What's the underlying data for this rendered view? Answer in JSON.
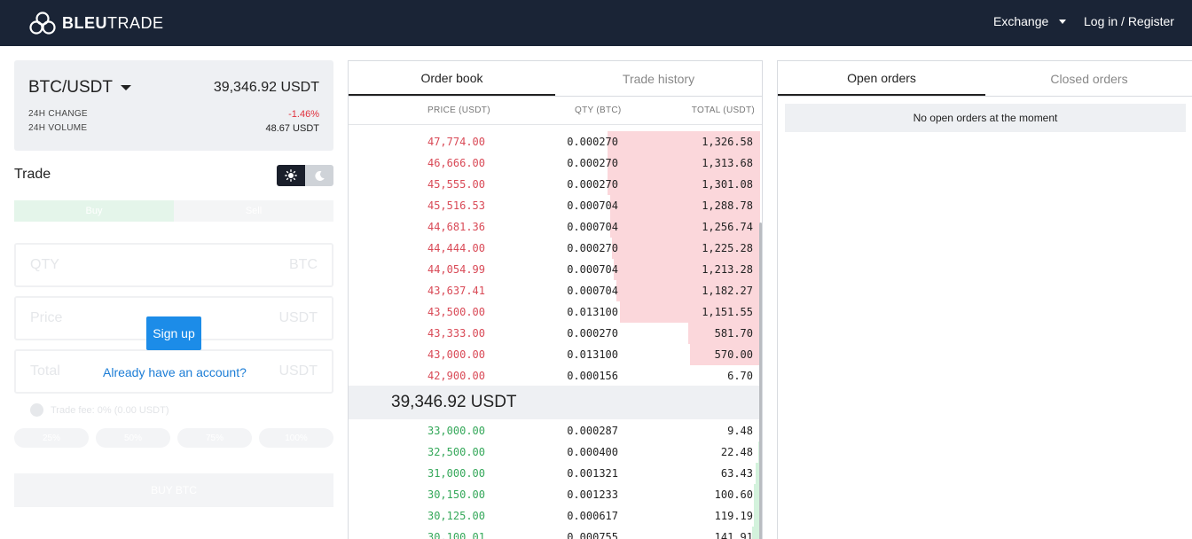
{
  "brand": {
    "logo_bold": "BLEU",
    "logo_light": "TRADE"
  },
  "nav": {
    "exchange": "Exchange",
    "login": "Log in / Register"
  },
  "pair": {
    "name": "BTC/USDT",
    "price": "39,346.92 USDT",
    "change_label": "24H CHANGE",
    "change_value": "-1.46%",
    "volume_label": "24H VOLUME",
    "volume_value": "48.67 USDT"
  },
  "trade": {
    "title": "Trade",
    "buy_tab": "Buy",
    "sell_tab": "Sell",
    "qty_placeholder": "QTY",
    "qty_unit": "BTC",
    "price_placeholder": "Price",
    "price_unit": "USDT",
    "total_placeholder": "Total",
    "total_unit": "USDT",
    "fee": "Trade fee: 0% (0.00 USDT)",
    "pcts": [
      "25%",
      "50%",
      "75%",
      "100%"
    ],
    "buy_button": "BUY BTC",
    "signup": "Sign up",
    "account_link": "Already have an account?"
  },
  "orderbook": {
    "tabs": [
      "Order book",
      "Trade history"
    ],
    "headers": {
      "price": "PRICE (USDT)",
      "qty": "QTY (BTC)",
      "total": "TOTAL (USDT)"
    },
    "asks": [
      {
        "price": "47,774.00",
        "qty": "0.000270",
        "total": "1,326.58",
        "depth": 0.74
      },
      {
        "price": "46,666.00",
        "qty": "0.000270",
        "total": "1,313.68",
        "depth": 0.74
      },
      {
        "price": "45,555.00",
        "qty": "0.000270",
        "total": "1,301.08",
        "depth": 0.74
      },
      {
        "price": "45,516.53",
        "qty": "0.000704",
        "total": "1,288.78",
        "depth": 0.73
      },
      {
        "price": "44,681.36",
        "qty": "0.000704",
        "total": "1,256.74",
        "depth": 0.73
      },
      {
        "price": "44,444.00",
        "qty": "0.000270",
        "total": "1,225.28",
        "depth": 0.72
      },
      {
        "price": "44,054.99",
        "qty": "0.000704",
        "total": "1,213.28",
        "depth": 0.71
      },
      {
        "price": "43,637.41",
        "qty": "0.000704",
        "total": "1,182.27",
        "depth": 0.7
      },
      {
        "price": "43,500.00",
        "qty": "0.013100",
        "total": "1,151.55",
        "depth": 0.68
      },
      {
        "price": "43,333.00",
        "qty": "0.000270",
        "total": "581.70",
        "depth": 0.35
      },
      {
        "price": "43,000.00",
        "qty": "0.013100",
        "total": "570.00",
        "depth": 0.34
      },
      {
        "price": "42,900.00",
        "qty": "0.000156",
        "total": "6.70",
        "depth": 0.0
      }
    ],
    "last_price": "39,346.92 USDT",
    "bids": [
      {
        "price": "33,000.00",
        "qty": "0.000287",
        "total": "9.48",
        "depth": 0.0
      },
      {
        "price": "32,500.00",
        "qty": "0.000400",
        "total": "22.48",
        "depth": 0.01
      },
      {
        "price": "31,000.00",
        "qty": "0.001321",
        "total": "63.43",
        "depth": 0.02
      },
      {
        "price": "30,150.00",
        "qty": "0.001233",
        "total": "100.60",
        "depth": 0.03
      },
      {
        "price": "30,125.00",
        "qty": "0.000617",
        "total": "119.19",
        "depth": 0.03
      },
      {
        "price": "30,100.01",
        "qty": "0.000755",
        "total": "141.91",
        "depth": 0.04
      }
    ]
  },
  "orders": {
    "tabs": [
      "Open orders",
      "Closed orders"
    ],
    "empty": "No open orders at the moment"
  },
  "colors": {
    "ask": "#d94a57",
    "bid": "#35a85a",
    "accent": "#1c8ce8",
    "topbar": "#1a2436"
  }
}
